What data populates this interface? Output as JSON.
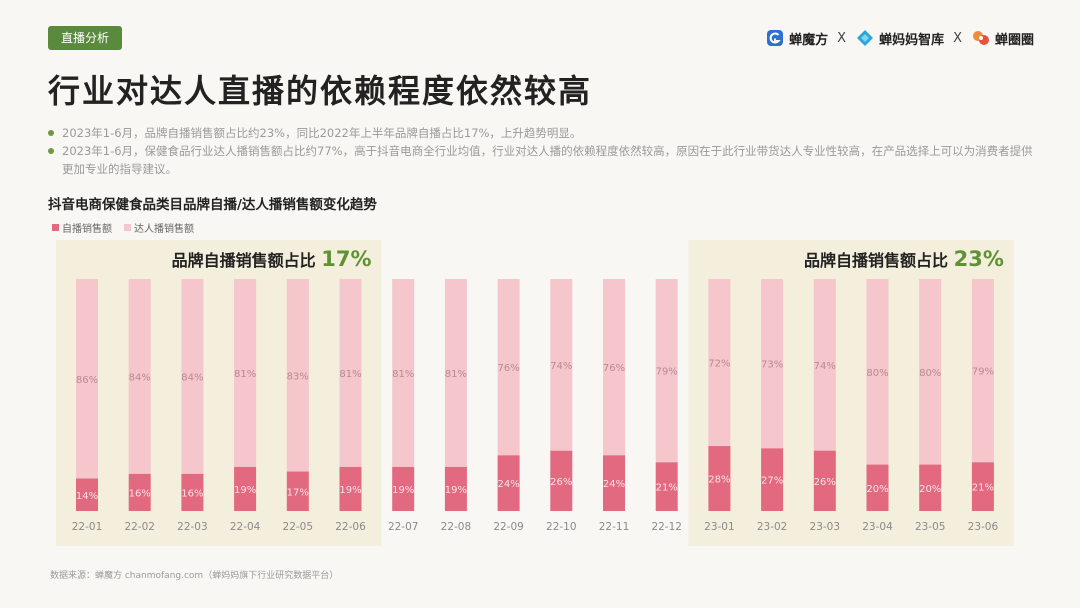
{
  "header": {
    "tag": "直播分析",
    "title": "行业对达人直播的依赖程度依然较高",
    "logos": [
      "蝉魔方",
      "蝉妈妈智库",
      "蝉圈圈"
    ],
    "separator": "X",
    "colors": {
      "tag_bg": "#5a8a3c",
      "accent_green": "#6e9a3d"
    }
  },
  "bullets": [
    "2023年1-6月，品牌自播销售额占比约23%，同比2022年上半年品牌自播占比17%，上升趋势明显。",
    "2023年1-6月，保健食品行业达人播销售额占比约77%，高于抖音电商全行业均值，行业对达人播的依赖程度依然较高，原因在于此行业带货达人专业性较高，在产品选择上可以为消费者提供更加专业的指导建议。"
  ],
  "footer": {
    "source": "数据来源：蝉魔方 chanmofang.com（蝉妈妈旗下行业研究数据平台）"
  },
  "chart_data": {
    "type": "bar",
    "stacked": true,
    "title": "抖音电商保健食品类目品牌自播/达人播销售额变化趋势",
    "categories": [
      "22-01",
      "22-02",
      "22-03",
      "22-04",
      "22-05",
      "22-06",
      "22-07",
      "22-08",
      "22-09",
      "22-10",
      "22-11",
      "22-12",
      "23-01",
      "23-02",
      "23-03",
      "23-04",
      "23-05",
      "23-06"
    ],
    "series": [
      {
        "name": "自播销售额",
        "color": "#e2697f",
        "values": [
          14,
          16,
          16,
          19,
          17,
          19,
          19,
          19,
          24,
          26,
          24,
          21,
          28,
          27,
          26,
          20,
          20,
          21
        ]
      },
      {
        "name": "达人播销售额",
        "color": "#f5c6cc",
        "values": [
          86,
          84,
          84,
          81,
          83,
          81,
          81,
          81,
          76,
          74,
          76,
          79,
          72,
          73,
          74,
          80,
          80,
          79
        ]
      }
    ],
    "ylim": [
      0,
      100
    ],
    "unit": "%",
    "annotations": [
      {
        "label": "品牌自播销售额占比",
        "value": "17%",
        "range": [
          "22-01",
          "22-06"
        ]
      },
      {
        "label": "品牌自播销售额占比",
        "value": "23%",
        "range": [
          "23-01",
          "23-06"
        ]
      }
    ]
  }
}
